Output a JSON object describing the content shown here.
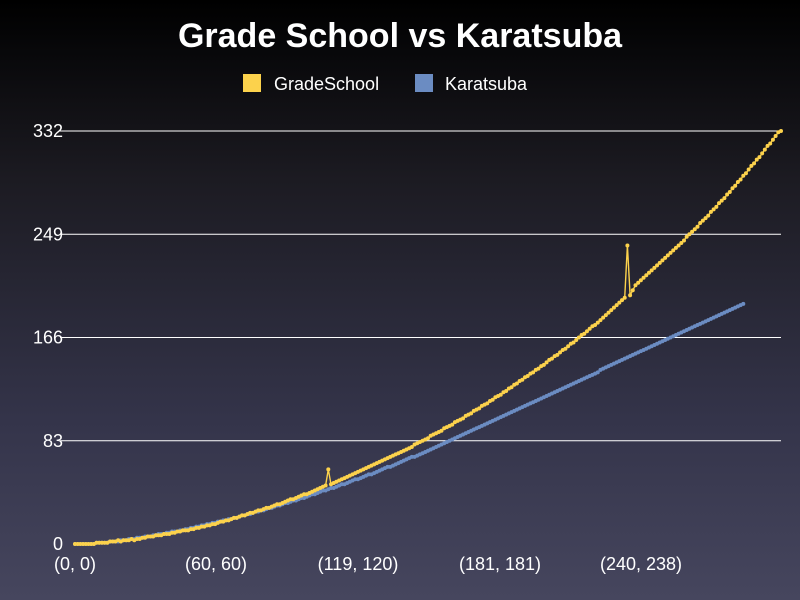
{
  "chart_data": {
    "type": "line",
    "title": "Grade School vs Karatsuba",
    "xlabel": "",
    "ylabel": "",
    "ylim": [
      0,
      332
    ],
    "yticks": [
      "0",
      "83",
      "166",
      "249",
      "332"
    ],
    "xtick_labels": [
      "(0, 0)",
      "(60, 60)",
      "(119, 120)",
      "(181, 181)",
      "(240, 238)"
    ],
    "grid": true,
    "legend_position": "top-center",
    "series": [
      {
        "name": "GradeSchool",
        "color": "#fcd24c",
        "values": [
          0,
          0,
          0,
          0,
          0,
          0,
          0,
          0,
          1,
          1,
          1,
          1,
          1,
          2,
          2,
          2,
          3,
          2,
          3,
          3,
          3,
          4,
          3,
          4,
          4,
          5,
          5,
          6,
          6,
          6,
          7,
          7,
          7,
          8,
          8,
          8,
          9,
          9,
          10,
          10,
          11,
          11,
          11,
          12,
          12,
          13,
          13,
          14,
          14,
          15,
          15,
          16,
          16,
          17,
          18,
          18,
          19,
          19,
          20,
          21,
          21,
          22,
          23,
          23,
          24,
          25,
          25,
          26,
          27,
          27,
          28,
          29,
          29,
          30,
          31,
          32,
          32,
          33,
          34,
          35,
          36,
          36,
          37,
          38,
          39,
          40,
          40,
          41,
          42,
          43,
          44,
          45,
          46,
          47,
          60,
          48,
          49,
          50,
          51,
          52,
          53,
          54,
          55,
          56,
          57,
          58,
          59,
          60,
          61,
          62,
          63,
          64,
          65,
          66,
          67,
          68,
          69,
          70,
          71,
          72,
          73,
          74,
          75,
          76,
          77,
          78,
          80,
          81,
          82,
          83,
          84,
          85,
          87,
          88,
          89,
          90,
          91,
          93,
          94,
          95,
          96,
          98,
          99,
          100,
          101,
          103,
          104,
          105,
          107,
          108,
          109,
          111,
          112,
          113,
          115,
          116,
          118,
          119,
          120,
          122,
          123,
          125,
          126,
          128,
          129,
          131,
          132,
          134,
          135,
          137,
          138,
          140,
          141,
          143,
          144,
          146,
          148,
          149,
          151,
          152,
          154,
          156,
          157,
          159,
          161,
          162,
          164,
          166,
          168,
          169,
          171,
          173,
          175,
          176,
          178,
          180,
          182,
          184,
          186,
          188,
          190,
          192,
          194,
          196,
          198,
          240,
          200,
          204,
          208,
          210,
          212,
          214,
          216,
          218,
          220,
          222,
          224,
          226,
          228,
          230,
          232,
          234,
          236,
          238,
          240,
          242,
          244,
          247,
          249,
          251,
          253,
          255,
          258,
          260,
          262,
          264,
          267,
          269,
          271,
          274,
          276,
          278,
          281,
          283,
          286,
          288,
          291,
          293,
          296,
          298,
          301,
          304,
          306,
          309,
          311,
          314,
          317,
          320,
          322,
          325,
          328,
          331,
          332
        ]
      },
      {
        "name": "Karatsuba",
        "color": "#6b8cc2",
        "values": [
          0,
          0,
          0,
          0,
          0,
          0,
          0,
          0,
          1,
          1,
          1,
          1,
          1,
          2,
          2,
          2,
          2,
          3,
          3,
          3,
          4,
          4,
          4,
          5,
          5,
          5,
          6,
          6,
          6,
          7,
          7,
          8,
          8,
          8,
          9,
          9,
          10,
          10,
          10,
          11,
          11,
          12,
          12,
          13,
          13,
          14,
          14,
          15,
          15,
          16,
          16,
          17,
          17,
          18,
          18,
          19,
          19,
          20,
          20,
          21,
          21,
          22,
          23,
          23,
          24,
          24,
          25,
          26,
          26,
          27,
          27,
          28,
          29,
          29,
          30,
          31,
          31,
          32,
          33,
          33,
          34,
          35,
          35,
          36,
          37,
          37,
          38,
          39,
          40,
          40,
          41,
          42,
          43,
          43,
          44,
          45,
          45,
          46,
          47,
          48,
          48,
          49,
          50,
          51,
          52,
          52,
          53,
          54,
          55,
          56,
          56,
          57,
          58,
          59,
          60,
          61,
          62,
          62,
          63,
          64,
          65,
          66,
          67,
          68,
          69,
          70,
          70,
          71,
          72,
          73,
          74,
          75,
          76,
          77,
          78,
          79,
          80,
          81,
          82,
          83,
          84,
          85,
          86,
          87,
          88,
          89,
          90,
          91,
          92,
          93,
          94,
          95,
          96,
          97,
          98,
          99,
          100,
          101,
          102,
          103,
          104,
          105,
          106,
          107,
          108,
          109,
          110,
          111,
          112,
          113,
          114,
          115,
          116,
          117,
          118,
          119,
          120,
          121,
          122,
          123,
          124,
          125,
          126,
          127,
          128,
          129,
          130,
          131,
          132,
          133,
          134,
          135,
          136,
          137,
          138,
          140,
          141,
          142,
          143,
          144,
          145,
          146,
          147,
          148,
          149,
          150,
          151,
          152,
          153,
          154,
          155,
          156,
          157,
          158,
          159,
          160,
          161,
          162,
          163,
          164,
          165,
          166,
          167,
          168,
          169,
          170,
          171,
          172,
          173,
          174,
          175,
          176,
          177,
          178,
          179,
          180,
          181,
          182,
          183,
          184,
          185,
          186,
          187,
          188,
          189,
          190,
          191,
          192,
          193
        ]
      }
    ]
  }
}
